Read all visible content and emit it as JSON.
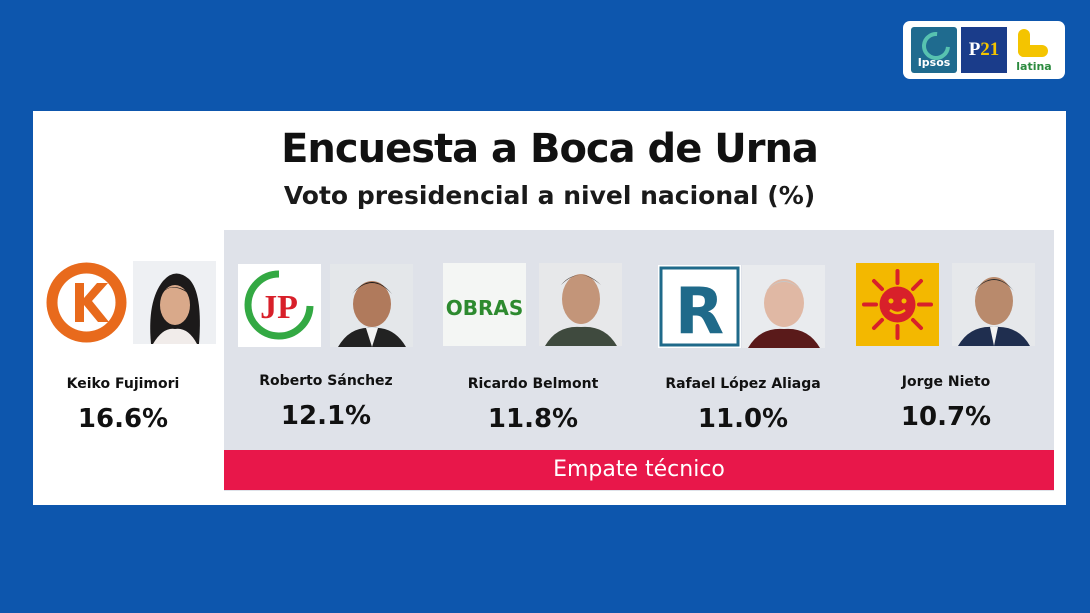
{
  "header": {
    "title": "Encuesta a Boca de Urna",
    "subtitle": "Voto presidencial a nivel nacional (%)"
  },
  "logos": {
    "ipsos_label": "Ipsos",
    "p21_prefix": "P",
    "p21_number": "21",
    "latina_label": "latina"
  },
  "tie_label": "Empate técnico",
  "candidates": [
    {
      "name": "Keiko Fujimori",
      "percent": "16.6%",
      "party_icon": "k-orange-circle-icon"
    },
    {
      "name": "Roberto Sánchez",
      "percent": "12.1%",
      "party_icon": "jp-logo-icon",
      "party_text": "JP"
    },
    {
      "name": "Ricardo Belmont",
      "percent": "11.8%",
      "party_icon": "obras-logo-icon",
      "party_text": "OBRAS"
    },
    {
      "name": "Rafael López Aliaga",
      "percent": "11.0%",
      "party_icon": "r-logo-icon",
      "party_text": "R"
    },
    {
      "name": "Jorge Nieto",
      "percent": "10.7%",
      "party_icon": "red-sun-icon"
    }
  ],
  "colors": {
    "background": "#0d56ad",
    "tie_bar": "#e8174a",
    "tie_zone": "#dfe2e9"
  }
}
